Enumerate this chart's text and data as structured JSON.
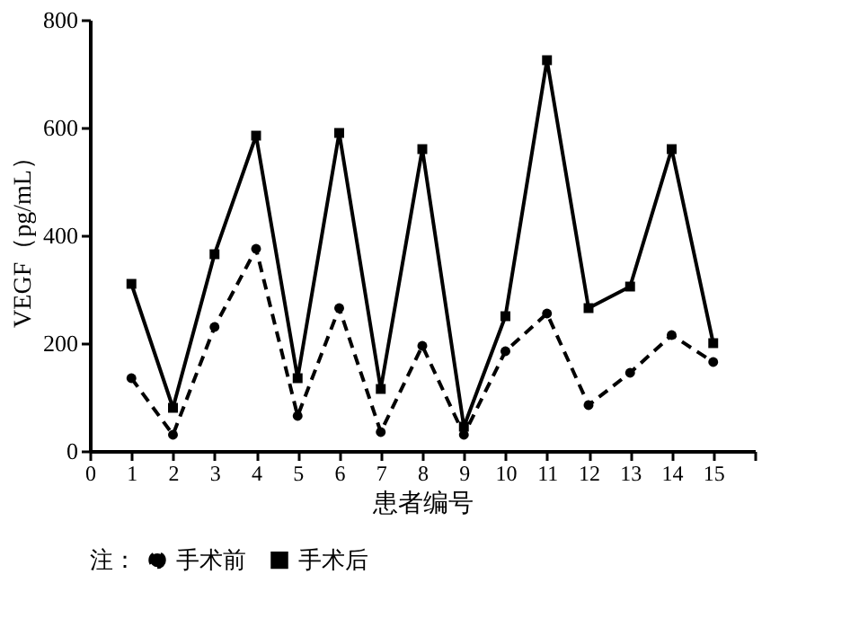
{
  "chart_data": {
    "type": "line",
    "xlabel": "患者编号",
    "ylabel": "VEGF（pg/mL）",
    "legend_title": "注：",
    "x": [
      1,
      2,
      3,
      4,
      5,
      6,
      7,
      8,
      9,
      10,
      11,
      12,
      13,
      14,
      15
    ],
    "series": [
      {
        "name": "手术前",
        "color": "#000000",
        "marker": "circle",
        "line_style": "dashed",
        "values": [
          135,
          30,
          230,
          375,
          65,
          265,
          35,
          195,
          30,
          185,
          255,
          85,
          145,
          215,
          165
        ]
      },
      {
        "name": "手术后",
        "color": "#000000",
        "marker": "square",
        "line_style": "solid",
        "values": [
          310,
          80,
          365,
          585,
          135,
          590,
          115,
          560,
          45,
          250,
          725,
          265,
          305,
          560,
          200
        ]
      }
    ],
    "xlim": [
      0,
      16
    ],
    "xticks": [
      0,
      1,
      2,
      3,
      4,
      5,
      6,
      7,
      8,
      9,
      10,
      11,
      12,
      13,
      14,
      15,
      {
        "value": 16,
        "label": null
      }
    ],
    "ylim": [
      0,
      800
    ],
    "yticks": [
      0,
      200,
      400,
      600,
      800
    ],
    "grid": false,
    "legend": "bottom"
  }
}
